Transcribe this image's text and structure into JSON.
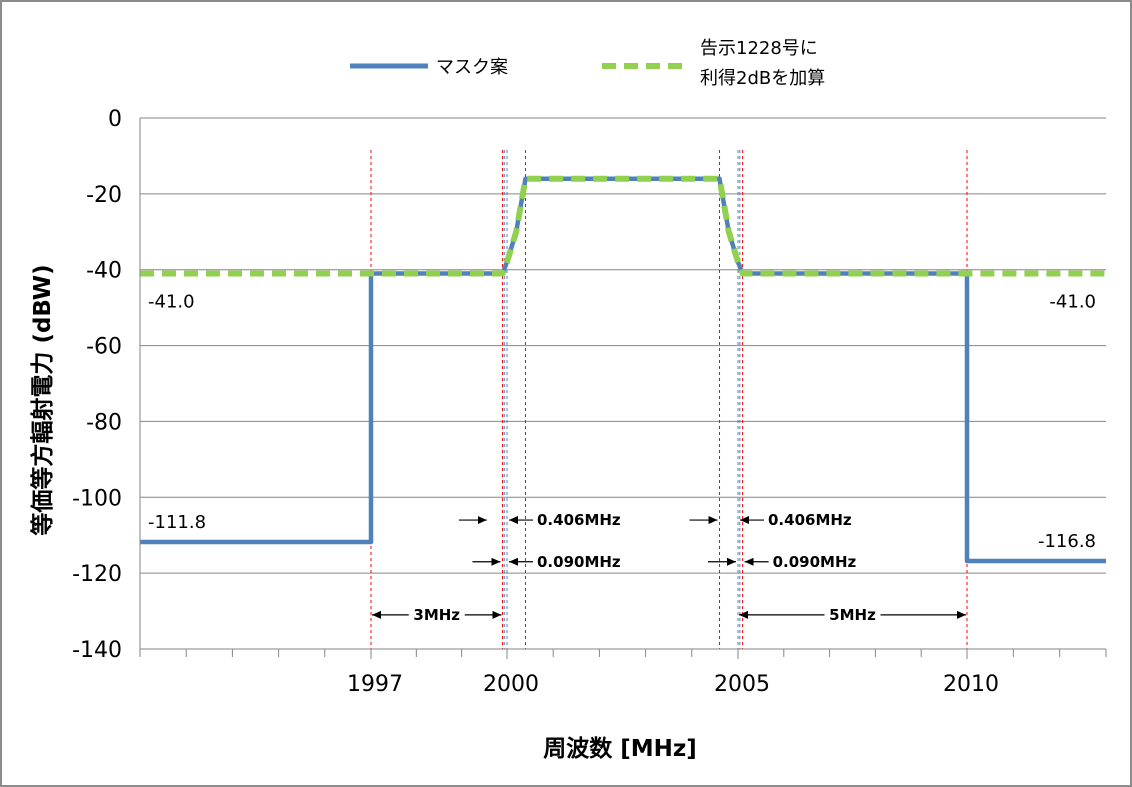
{
  "colors": {
    "mask": "#4f81bd",
    "limit": "#92d050",
    "grid": "#868686",
    "marker_red": "#ff0000",
    "marker_blue": "#4f81bd"
  },
  "chart_data": {
    "type": "line",
    "title": "",
    "xlabel": "周波数 [MHz]",
    "ylabel": "等価等方輻射電力 (dBW)",
    "xlim": [
      1992,
      2013
    ],
    "ylim": [
      -140,
      0
    ],
    "x_ticks": [
      1997,
      2000,
      2005,
      2010
    ],
    "y_ticks": [
      0,
      -20,
      -40,
      -60,
      -80,
      -100,
      -120,
      -140
    ],
    "grid": true,
    "legend": "top",
    "series": [
      {
        "name": "マスク案",
        "style": "solid",
        "points": [
          [
            1992,
            -111.8
          ],
          [
            1997,
            -111.8
          ],
          [
            1997,
            -41.0
          ],
          [
            1999.9,
            -41.0
          ],
          [
            2000.0,
            -38.0
          ],
          [
            2000.2,
            -30.0
          ],
          [
            2000.4,
            -16.0
          ],
          [
            2004.6,
            -16.0
          ],
          [
            2004.8,
            -30.0
          ],
          [
            2005.0,
            -38.0
          ],
          [
            2005.1,
            -41.0
          ],
          [
            2010,
            -41.0
          ],
          [
            2010,
            -116.8
          ],
          [
            2013,
            -116.8
          ]
        ]
      },
      {
        "name": "告示1228号に\n利得2dBを加算",
        "style": "dashed",
        "points": [
          [
            1992,
            -41.0
          ],
          [
            1999.9,
            -41.0
          ],
          [
            2000.0,
            -38.0
          ],
          [
            2000.2,
            -30.0
          ],
          [
            2000.4,
            -16.0
          ],
          [
            2004.6,
            -16.0
          ],
          [
            2004.8,
            -30.0
          ],
          [
            2005.0,
            -38.0
          ],
          [
            2005.1,
            -41.0
          ],
          [
            2013,
            -41.0
          ]
        ]
      }
    ],
    "legend_entries": [
      {
        "text": "マスク案",
        "series": 0
      },
      {
        "text": "告示1228号に\n利得2dBを加算",
        "series": 1
      }
    ],
    "vlines": [
      {
        "x": 1997,
        "color": "red"
      },
      {
        "x": 1999.9,
        "color": "red"
      },
      {
        "x": 1999.94,
        "color": "blue"
      },
      {
        "x": 2000.0,
        "color": "blue"
      },
      {
        "x": 2000.4,
        "color": "red"
      },
      {
        "x": 2004.6,
        "color": "red"
      },
      {
        "x": 2005.0,
        "color": "blue"
      },
      {
        "x": 2005.04,
        "color": "blue"
      },
      {
        "x": 2005.1,
        "color": "red"
      },
      {
        "x": 2010,
        "color": "red"
      }
    ],
    "value_labels": [
      {
        "text": "-41.0",
        "x": 1992,
        "y": -41.0,
        "align": "left"
      },
      {
        "text": "-41.0",
        "x": 2013,
        "y": -41.0,
        "align": "right"
      },
      {
        "text": "-111.8",
        "x": 1992,
        "y": -111.8,
        "align": "left"
      },
      {
        "text": "-116.8",
        "x": 2013,
        "y": -116.8,
        "align": "right"
      }
    ],
    "annotations": [
      {
        "text": "0.406MHz",
        "x1": 1999.6,
        "x2": 2000.0,
        "y": -106,
        "type": "converge"
      },
      {
        "text": "0.090MHz",
        "x1": 1999.9,
        "x2": 2000.0,
        "y": -117,
        "type": "converge"
      },
      {
        "text": "0.406MHz",
        "x1": 2004.6,
        "x2": 2005.0,
        "y": -106,
        "type": "converge"
      },
      {
        "text": "0.090MHz",
        "x1": 2005.0,
        "x2": 2005.1,
        "y": -117,
        "type": "converge"
      },
      {
        "text": "3MHz",
        "x1": 1997,
        "x2": 1999.9,
        "y": -131,
        "type": "span"
      },
      {
        "text": "5MHz",
        "x1": 2005.0,
        "x2": 2010,
        "y": -131,
        "type": "span"
      }
    ]
  }
}
